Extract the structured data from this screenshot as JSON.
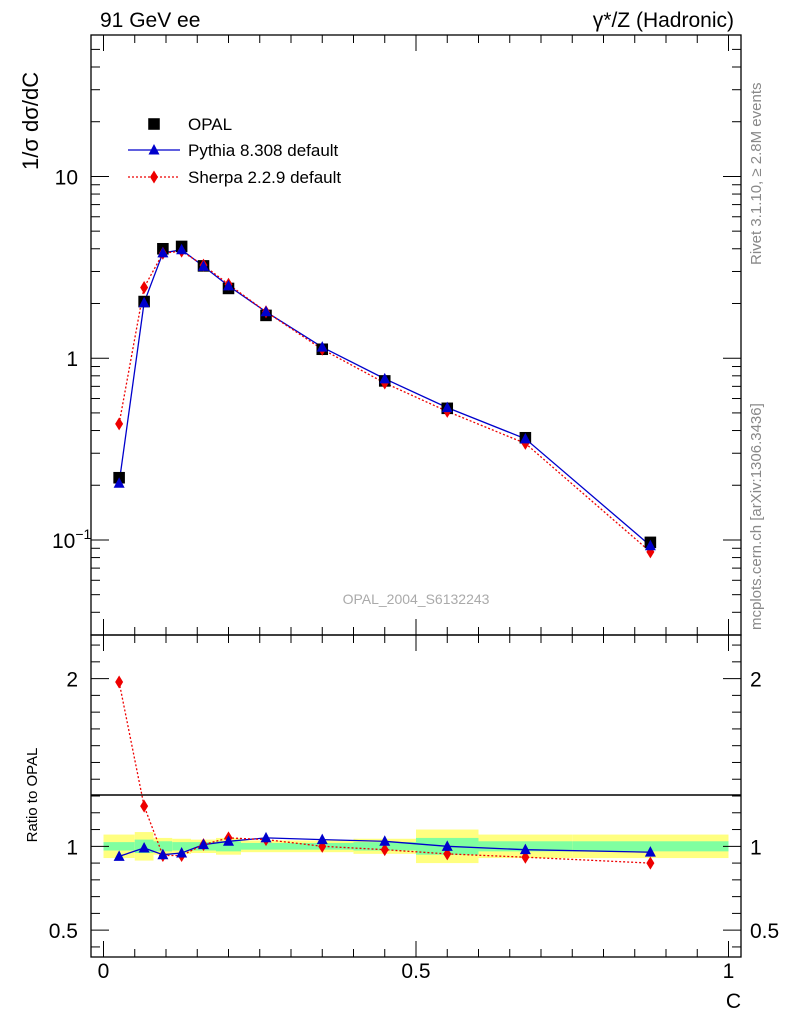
{
  "header": {
    "left": "91 GeV ee",
    "right": "γ*/Z (Hadronic)"
  },
  "side_labels": {
    "rivet": "Rivet 3.1.10, ≥ 2.8M events",
    "source": "mcplots.cern.ch [arXiv:1306.3436]"
  },
  "watermark": "OPAL_2004_S6132243",
  "colors": {
    "data": "#000000",
    "pythia": "#0000cc",
    "sherpa": "#ee0000",
    "band_inner": "#80ffa0",
    "band_outer": "#ffff80"
  },
  "chart_data": [
    {
      "type": "line",
      "ylabel": "1/σ dσ/dC",
      "yscale": "log",
      "ylim": [
        0.03,
        60
      ],
      "xlim": [
        -0.02,
        1.02
      ],
      "yticks": [
        {
          "value": 10,
          "label": "10"
        },
        {
          "value": 1,
          "label": "1"
        },
        {
          "value": 0.1,
          "label": "10",
          "exp": "−1"
        }
      ],
      "legend_placement": "top-left",
      "x": [
        0.025,
        0.065,
        0.095,
        0.125,
        0.16,
        0.2,
        0.26,
        0.35,
        0.45,
        0.55,
        0.675,
        0.875
      ],
      "series": [
        {
          "name": "OPAL",
          "marker": "square",
          "values": [
            0.22,
            2.05,
            4.0,
            4.12,
            3.22,
            2.42,
            1.72,
            1.12,
            0.75,
            0.53,
            0.365,
            0.097
          ]
        },
        {
          "name": "Pythia 8.308 default",
          "marker": "triangle",
          "values": [
            0.205,
            2.02,
            3.8,
            3.95,
            3.2,
            2.5,
            1.8,
            1.15,
            0.77,
            0.535,
            0.36,
            0.093
          ]
        },
        {
          "name": "Sherpa 2.2.9 default",
          "marker": "diamond",
          "values": [
            0.435,
            2.45,
            3.78,
            3.88,
            3.25,
            2.55,
            1.8,
            1.12,
            0.73,
            0.51,
            0.34,
            0.086
          ]
        }
      ]
    },
    {
      "type": "line",
      "ylabel": "Ratio to OPAL",
      "xlabel": "C",
      "ylim": [
        0.34,
        2.26
      ],
      "xlim": [
        -0.02,
        1.02
      ],
      "yticks": [
        {
          "value": 2,
          "label": "2"
        },
        {
          "value": 1,
          "label": "1"
        },
        {
          "value": 0.5,
          "label": "0.5"
        }
      ],
      "xticks": [
        {
          "value": 0,
          "label": "0"
        },
        {
          "value": 0.5,
          "label": "0.5"
        },
        {
          "value": 1,
          "label": "1"
        }
      ],
      "x": [
        0.025,
        0.065,
        0.095,
        0.125,
        0.16,
        0.2,
        0.26,
        0.35,
        0.45,
        0.55,
        0.675,
        0.875
      ],
      "series": [
        {
          "name": "Pythia 8.308 default",
          "marker": "triangle",
          "values": [
            0.94,
            0.99,
            0.95,
            0.96,
            1.01,
            1.03,
            1.05,
            1.04,
            1.03,
            1.0,
            0.98,
            0.965
          ]
        },
        {
          "name": "Sherpa 2.2.9 default",
          "marker": "diamond",
          "values": [
            1.98,
            1.24,
            0.945,
            0.945,
            1.01,
            1.05,
            1.04,
            1.0,
            0.98,
            0.955,
            0.935,
            0.9
          ]
        }
      ],
      "uncertainty_bands": [
        {
          "x_range": [
            0.0,
            0.05
          ],
          "stat": 0.025,
          "total": 0.07
        },
        {
          "x_range": [
            0.05,
            0.08
          ],
          "stat": 0.04,
          "total": 0.085
        },
        {
          "x_range": [
            0.08,
            0.11
          ],
          "stat": 0.03,
          "total": 0.05
        },
        {
          "x_range": [
            0.11,
            0.14
          ],
          "stat": 0.025,
          "total": 0.045
        },
        {
          "x_range": [
            0.14,
            0.18
          ],
          "stat": 0.025,
          "total": 0.04
        },
        {
          "x_range": [
            0.18,
            0.22
          ],
          "stat": 0.03,
          "total": 0.05
        },
        {
          "x_range": [
            0.22,
            0.3
          ],
          "stat": 0.02,
          "total": 0.035
        },
        {
          "x_range": [
            0.3,
            0.4
          ],
          "stat": 0.02,
          "total": 0.035
        },
        {
          "x_range": [
            0.4,
            0.5
          ],
          "stat": 0.025,
          "total": 0.045
        },
        {
          "x_range": [
            0.5,
            0.6
          ],
          "stat": 0.05,
          "total": 0.1
        },
        {
          "x_range": [
            0.6,
            0.75
          ],
          "stat": 0.03,
          "total": 0.07
        },
        {
          "x_range": [
            0.75,
            1.0
          ],
          "stat": 0.03,
          "total": 0.07
        }
      ]
    }
  ]
}
